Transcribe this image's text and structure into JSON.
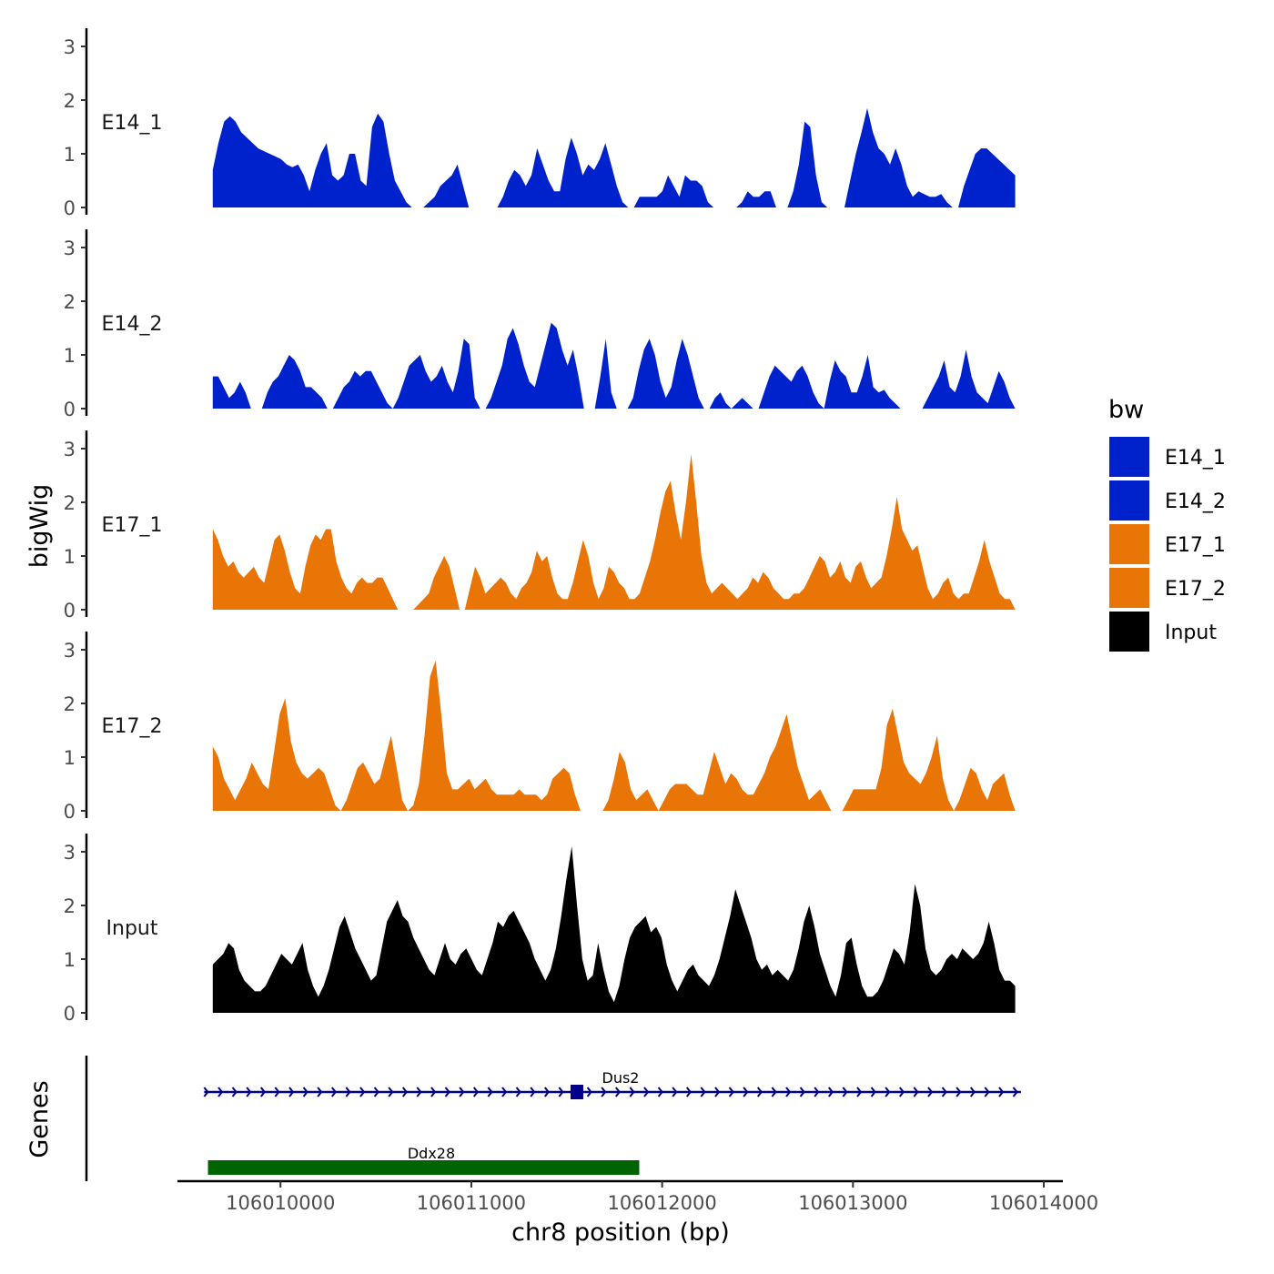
{
  "chart_data": {
    "type": "area",
    "subtype": "genome-track",
    "chromosome": "chr8",
    "xlabel": "chr8 position (bp)",
    "ylabel": "bigWig",
    "genes_label": "Genes",
    "xlim": [
      106009460,
      106014100
    ],
    "ylim": [
      0,
      3.3
    ],
    "data_xrange": [
      106009645,
      106013850
    ],
    "xticks": [
      106010000,
      106011000,
      106012000,
      106013000,
      106014000
    ],
    "xtick_labels": [
      "106010000",
      "106011000",
      "106012000",
      "106013000",
      "106014000"
    ],
    "yticks": [
      0,
      1,
      2,
      3
    ],
    "ytick_labels": [
      "0",
      "1",
      "2",
      "3"
    ],
    "legend": {
      "title": "bw",
      "entries": [
        {
          "label": "E14_1",
          "color": "#0022CC"
        },
        {
          "label": "E14_2",
          "color": "#0022CC"
        },
        {
          "label": "E17_1",
          "color": "#E87506"
        },
        {
          "label": "E17_2",
          "color": "#E87506"
        },
        {
          "label": "Input",
          "color": "#000000"
        }
      ]
    },
    "series": [
      {
        "name": "E14_1",
        "color": "#0022CC",
        "values": [
          0.7,
          1.2,
          1.6,
          1.7,
          1.6,
          1.4,
          1.3,
          1.2,
          1.1,
          1.05,
          1.0,
          0.95,
          0.9,
          0.8,
          0.75,
          0.8,
          0.6,
          0.3,
          0.7,
          1.0,
          1.2,
          0.6,
          0.5,
          0.6,
          1.0,
          1.0,
          0.5,
          0.4,
          1.5,
          1.75,
          1.6,
          1.0,
          0.5,
          0.3,
          0.1,
          0,
          0,
          0,
          0.1,
          0.2,
          0.4,
          0.5,
          0.6,
          0.8,
          0.4,
          0,
          0,
          0,
          0,
          0,
          0,
          0.2,
          0.5,
          0.7,
          0.6,
          0.4,
          0.6,
          1.1,
          0.8,
          0.5,
          0.3,
          0.3,
          0.9,
          1.3,
          1.0,
          0.6,
          0.8,
          0.7,
          0.9,
          1.2,
          0.8,
          0.4,
          0.1,
          0,
          0,
          0.2,
          0.2,
          0.2,
          0.2,
          0.3,
          0.6,
          0.4,
          0.2,
          0.6,
          0.5,
          0.5,
          0.4,
          0.1,
          0,
          0,
          0,
          0,
          0,
          0.1,
          0.3,
          0.2,
          0.2,
          0.3,
          0.3,
          0,
          0,
          0,
          0.3,
          0.8,
          1.6,
          1.5,
          0.6,
          0.1,
          0,
          0,
          0,
          0,
          0.5,
          1.0,
          1.4,
          1.85,
          1.4,
          1.1,
          1.0,
          0.8,
          1.1,
          0.8,
          0.4,
          0.2,
          0.3,
          0.25,
          0.2,
          0.2,
          0.25,
          0.1,
          0,
          0,
          0.4,
          0.7,
          1.0,
          1.1,
          1.1,
          1.0,
          0.9,
          0.8,
          0.7,
          0.6
        ]
      },
      {
        "name": "E14_2",
        "color": "#0022CC",
        "values": [
          0.6,
          0.6,
          0.4,
          0.2,
          0.3,
          0.5,
          0.3,
          0,
          0,
          0,
          0.3,
          0.5,
          0.6,
          0.8,
          1.0,
          0.9,
          0.7,
          0.4,
          0.4,
          0.3,
          0.2,
          0,
          0,
          0.2,
          0.4,
          0.5,
          0.7,
          0.6,
          0.7,
          0.7,
          0.5,
          0.3,
          0.1,
          0,
          0.2,
          0.5,
          0.8,
          0.9,
          1.0,
          0.7,
          0.5,
          0.6,
          0.8,
          0.5,
          0.3,
          0.7,
          1.3,
          1.2,
          0.2,
          0,
          0,
          0.2,
          0.5,
          0.8,
          1.3,
          1.5,
          1.2,
          0.8,
          0.5,
          0.4,
          0.8,
          1.2,
          1.6,
          1.5,
          1.1,
          0.8,
          1.1,
          0.6,
          0,
          0,
          0,
          0.6,
          1.3,
          0.3,
          0,
          0,
          0,
          0.2,
          0.7,
          1.1,
          1.3,
          1.0,
          0.5,
          0.2,
          0.4,
          0.9,
          1.3,
          1.0,
          0.6,
          0.2,
          0,
          0,
          0.2,
          0.3,
          0.1,
          0,
          0.1,
          0.2,
          0.1,
          0,
          0,
          0.3,
          0.6,
          0.8,
          0.7,
          0.6,
          0.5,
          0.7,
          0.8,
          0.6,
          0.3,
          0.1,
          0,
          0.5,
          0.9,
          0.7,
          0.6,
          0.3,
          0.3,
          0.6,
          1.0,
          0.4,
          0.3,
          0.35,
          0.2,
          0.1,
          0,
          0,
          0,
          0,
          0,
          0.2,
          0.4,
          0.6,
          0.9,
          0.4,
          0.3,
          0.6,
          1.1,
          0.6,
          0.3,
          0.2,
          0.1,
          0.4,
          0.7,
          0.5,
          0.2,
          0
        ]
      },
      {
        "name": "E17_1",
        "color": "#E87506",
        "values": [
          1.5,
          1.3,
          1.0,
          0.8,
          0.9,
          0.7,
          0.6,
          0.7,
          0.8,
          0.6,
          0.5,
          0.9,
          1.3,
          1.4,
          1.1,
          0.7,
          0.4,
          0.3,
          0.8,
          1.2,
          1.4,
          1.3,
          1.5,
          1.5,
          0.9,
          0.6,
          0.4,
          0.3,
          0.5,
          0.6,
          0.5,
          0.5,
          0.6,
          0.6,
          0.4,
          0.2,
          0,
          0,
          0,
          0,
          0.1,
          0.2,
          0.3,
          0.6,
          0.8,
          1.0,
          0.8,
          0.4,
          0,
          0,
          0.4,
          0.8,
          0.6,
          0.3,
          0.4,
          0.5,
          0.6,
          0.5,
          0.3,
          0.2,
          0.4,
          0.5,
          0.7,
          1.1,
          0.9,
          1.0,
          0.6,
          0.3,
          0.2,
          0.2,
          0.5,
          0.9,
          1.3,
          1.0,
          0.5,
          0.2,
          0.4,
          0.8,
          0.7,
          0.5,
          0.4,
          0.2,
          0.2,
          0.3,
          0.6,
          0.9,
          1.3,
          1.8,
          2.2,
          2.4,
          1.8,
          1.3,
          2.0,
          2.9,
          2.0,
          1.0,
          0.5,
          0.3,
          0.4,
          0.5,
          0.4,
          0.3,
          0.2,
          0.3,
          0.4,
          0.6,
          0.5,
          0.7,
          0.6,
          0.4,
          0.3,
          0.2,
          0.2,
          0.3,
          0.3,
          0.4,
          0.6,
          0.8,
          1.0,
          0.9,
          0.6,
          0.7,
          0.9,
          0.6,
          0.5,
          0.8,
          0.9,
          0.6,
          0.4,
          0.5,
          0.6,
          1.0,
          1.5,
          2.1,
          1.5,
          1.3,
          1.1,
          1.2,
          0.8,
          0.4,
          0.2,
          0.3,
          0.5,
          0.6,
          0.3,
          0.2,
          0.3,
          0.3,
          0.6,
          0.9,
          1.3,
          0.9,
          0.6,
          0.3,
          0.2,
          0.2,
          0
        ]
      },
      {
        "name": "E17_2",
        "color": "#E87506",
        "values": [
          1.2,
          1.0,
          0.6,
          0.4,
          0.2,
          0.4,
          0.6,
          0.9,
          0.7,
          0.5,
          0.4,
          1.1,
          1.8,
          2.1,
          1.3,
          0.9,
          0.7,
          0.6,
          0.7,
          0.8,
          0.7,
          0.4,
          0.1,
          0,
          0.2,
          0.5,
          0.8,
          0.9,
          0.7,
          0.5,
          0.6,
          1.0,
          1.4,
          0.8,
          0.2,
          0,
          0.1,
          0.5,
          1.4,
          2.5,
          2.8,
          1.8,
          0.7,
          0.4,
          0.4,
          0.5,
          0.6,
          0.4,
          0.5,
          0.6,
          0.4,
          0.3,
          0.3,
          0.3,
          0.3,
          0.4,
          0.3,
          0.3,
          0.3,
          0.2,
          0.3,
          0.6,
          0.7,
          0.8,
          0.7,
          0.3,
          0,
          0,
          0,
          0,
          0,
          0.2,
          0.6,
          1.1,
          0.9,
          0.4,
          0.2,
          0.3,
          0.4,
          0.2,
          0,
          0.2,
          0.4,
          0.5,
          0.5,
          0.5,
          0.4,
          0.3,
          0.3,
          0.7,
          1.1,
          0.8,
          0.5,
          0.7,
          0.6,
          0.4,
          0.3,
          0.3,
          0.5,
          0.7,
          1.0,
          1.2,
          1.5,
          1.8,
          1.3,
          0.8,
          0.5,
          0.2,
          0.3,
          0.4,
          0.2,
          0,
          0,
          0,
          0.2,
          0.4,
          0.4,
          0.4,
          0.4,
          0.4,
          0.8,
          1.6,
          1.9,
          1.4,
          0.9,
          0.7,
          0.6,
          0.5,
          0.7,
          1.0,
          1.4,
          0.6,
          0.2,
          0,
          0.2,
          0.5,
          0.8,
          0.7,
          0.4,
          0.2,
          0.5,
          0.6,
          0.7,
          0.3,
          0
        ]
      },
      {
        "name": "Input",
        "color": "#000000",
        "values": [
          0.9,
          1.0,
          1.1,
          1.3,
          1.2,
          0.8,
          0.6,
          0.5,
          0.4,
          0.4,
          0.5,
          0.7,
          0.9,
          1.1,
          1.0,
          0.9,
          1.1,
          1.3,
          0.8,
          0.5,
          0.3,
          0.5,
          0.8,
          1.2,
          1.6,
          1.8,
          1.5,
          1.2,
          1.0,
          0.8,
          0.6,
          0.7,
          1.2,
          1.7,
          1.9,
          2.1,
          1.8,
          1.7,
          1.4,
          1.2,
          1.0,
          0.8,
          0.7,
          1.0,
          1.3,
          1.0,
          0.9,
          1.1,
          1.2,
          1.0,
          0.8,
          0.7,
          1.0,
          1.3,
          1.7,
          1.6,
          1.8,
          1.9,
          1.7,
          1.5,
          1.3,
          1.0,
          0.8,
          0.6,
          0.8,
          1.2,
          1.8,
          2.5,
          3.1,
          2.0,
          1.0,
          0.6,
          0.7,
          1.3,
          0.8,
          0.4,
          0.2,
          0.5,
          1.0,
          1.4,
          1.6,
          1.7,
          1.8,
          1.5,
          1.6,
          1.4,
          0.9,
          0.6,
          0.4,
          0.6,
          0.8,
          0.9,
          0.7,
          0.6,
          0.5,
          0.7,
          1.0,
          1.4,
          1.8,
          2.3,
          2.0,
          1.7,
          1.4,
          1.0,
          0.8,
          0.9,
          0.7,
          0.8,
          0.7,
          0.6,
          0.8,
          1.2,
          1.7,
          2.0,
          1.6,
          1.1,
          0.8,
          0.5,
          0.3,
          0.7,
          1.3,
          1.4,
          0.9,
          0.5,
          0.3,
          0.3,
          0.4,
          0.6,
          0.9,
          1.2,
          1.1,
          0.9,
          1.5,
          2.4,
          2.0,
          1.2,
          0.8,
          0.7,
          0.8,
          1.0,
          1.1,
          1.0,
          1.2,
          1.1,
          1.0,
          1.1,
          1.3,
          1.7,
          1.3,
          0.8,
          0.6,
          0.6,
          0.5
        ]
      }
    ],
    "genes": [
      {
        "name": "Dus2",
        "start": 106009600,
        "end": 106013880,
        "strand": "+",
        "color": "#00008B",
        "exon_start": 106011520,
        "exon_end": 106011580
      },
      {
        "name": "Ddx28",
        "start": 106009620,
        "end": 106011880,
        "strand": "+",
        "color": "#006400"
      }
    ]
  }
}
